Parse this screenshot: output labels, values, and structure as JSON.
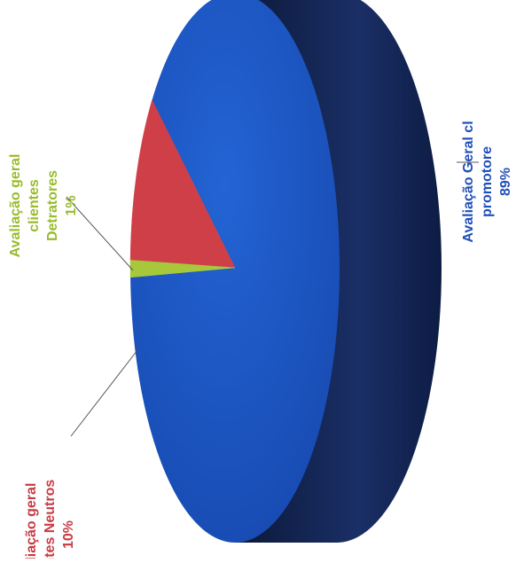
{
  "chart_data": {
    "type": "pie",
    "style": "3d",
    "title": "",
    "orientation": "rotated 90 degrees counter-clockwise",
    "slices": [
      {
        "label_lines": [
          "Avaliação Geral cl",
          "promotore",
          "89%"
        ],
        "value": 89,
        "color": "#1a55c4",
        "side_color": "#0e2048"
      },
      {
        "label_lines": [
          "Avaliação geral",
          "clientes Neutros",
          "10%"
        ],
        "value": 10,
        "color": "#cf3f48",
        "side_color": "#8a232a"
      },
      {
        "label_lines": [
          "Avaliação geral",
          "clientes",
          "Detratores",
          "1%"
        ],
        "value": 1,
        "color": "#a6c83a",
        "side_color": "#6e8a20"
      }
    ]
  }
}
